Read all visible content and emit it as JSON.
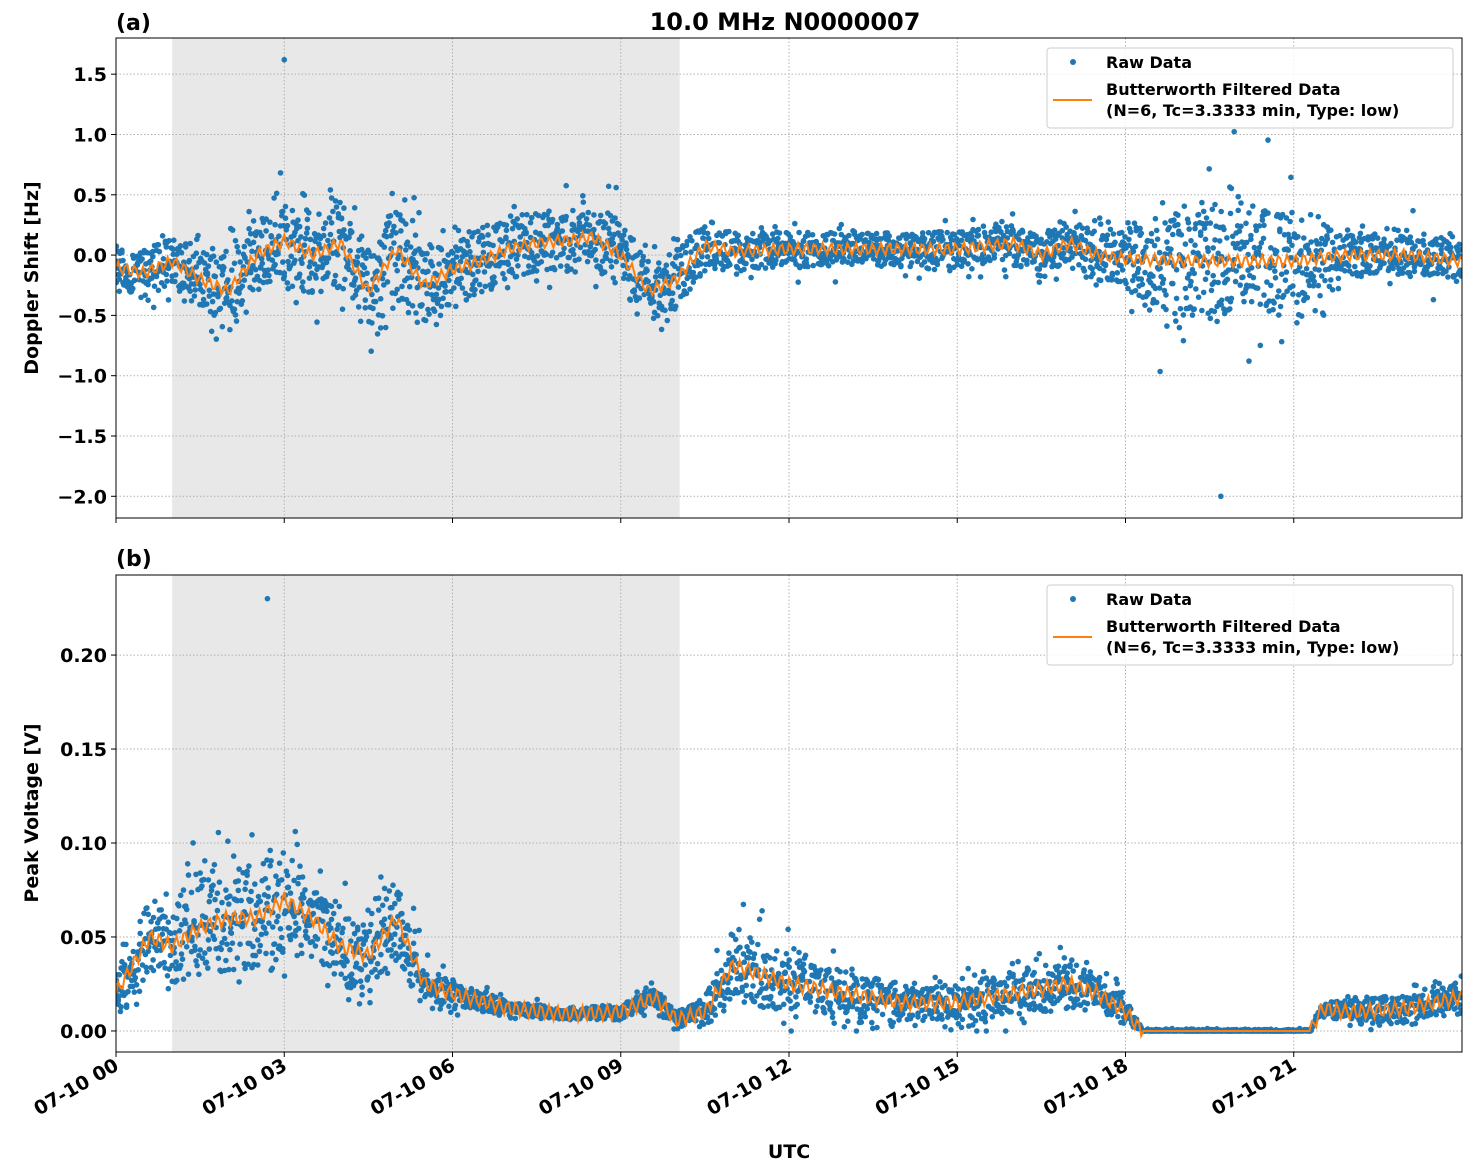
{
  "chart_data": {
    "title": "10.0 MHz N0000007",
    "xlabel": "UTC",
    "x_unit": "hours since 07-10 00:00 UTC",
    "xlim": [
      0,
      24
    ],
    "xticks": [
      0,
      3,
      6,
      9,
      12,
      15,
      18,
      21
    ],
    "xtick_labels": [
      "07-10 00",
      "07-10 03",
      "07-10 06",
      "07-10 09",
      "07-10 12",
      "07-10 15",
      "07-10 18",
      "07-10 21"
    ],
    "shaded_span_hours": [
      1.0,
      10.05
    ],
    "grid": true,
    "colors": {
      "raw": "#1f77b4",
      "filtered": "#ff7f0e",
      "shade": "#e8e8e8"
    },
    "legend": {
      "placement": "top-right",
      "entries": [
        "Raw Data",
        "Butterworth Filtered Data",
        "(N=6, Tc=3.3333 min, Type: low)"
      ]
    },
    "panels": [
      {
        "label": "(a)",
        "type": "scatter+line",
        "ylabel": "Doppler Shift [Hz]",
        "ylim": [
          -2.18,
          1.8
        ],
        "yticks": [
          1.5,
          1.0,
          0.5,
          0.0,
          -0.5,
          -1.0,
          -1.5,
          -2.0
        ],
        "ytick_labels": [
          "1.5",
          "1.0",
          "0.5",
          "0.0",
          "−0.5",
          "−1.0",
          "−1.5",
          "−2.0"
        ],
        "filtered": {
          "x": [
            0,
            0.5,
            1,
            1.5,
            2,
            2.5,
            3,
            3.5,
            4,
            4.5,
            5,
            5.5,
            6,
            6.5,
            7,
            7.5,
            8,
            8.5,
            9,
            9.5,
            10,
            10.5,
            11,
            12,
            13,
            14,
            15,
            16,
            16.5,
            17,
            17.5,
            18,
            19,
            20,
            21,
            21.5,
            22,
            23,
            24
          ],
          "y": [
            -0.1,
            -0.15,
            -0.05,
            -0.2,
            -0.3,
            0.0,
            0.12,
            0.0,
            0.1,
            -0.3,
            0.05,
            -0.25,
            -0.12,
            -0.05,
            0.05,
            0.1,
            0.12,
            0.15,
            0.0,
            -0.3,
            -0.2,
            0.08,
            0.03,
            0.05,
            0.05,
            0.05,
            0.05,
            0.1,
            0.0,
            0.1,
            0.0,
            -0.03,
            -0.05,
            -0.05,
            -0.05,
            -0.02,
            0.0,
            0.0,
            -0.05
          ]
        },
        "raw_spread": {
          "x": [
            0,
            1,
            2,
            3,
            4,
            5,
            6,
            7,
            8,
            9,
            10,
            11,
            12,
            13,
            14,
            15,
            16,
            17,
            18,
            19,
            20,
            21,
            22,
            23,
            24
          ],
          "y": [
            0.22,
            0.25,
            0.35,
            0.4,
            0.45,
            0.45,
            0.35,
            0.3,
            0.33,
            0.35,
            0.3,
            0.2,
            0.18,
            0.18,
            0.18,
            0.18,
            0.2,
            0.2,
            0.35,
            0.6,
            0.6,
            0.5,
            0.2,
            0.2,
            0.2
          ]
        },
        "raw_extremes": {
          "max": 1.62,
          "min": -2.0
        }
      },
      {
        "label": "(b)",
        "type": "scatter+line",
        "ylabel": "Peak Voltage [V]",
        "ylim": [
          -0.0112,
          0.2426
        ],
        "yticks": [
          0.2,
          0.15,
          0.1,
          0.05,
          0.0
        ],
        "ytick_labels": [
          "0.20",
          "0.15",
          "0.10",
          "0.05",
          "0.00"
        ],
        "filtered": {
          "x": [
            0,
            0.3,
            0.6,
            1,
            1.5,
            2,
            2.5,
            3,
            3.5,
            4,
            4.5,
            5,
            5.5,
            6,
            7,
            8,
            9,
            9.6,
            10,
            10.5,
            11,
            11.5,
            12,
            13,
            14,
            15,
            16,
            17,
            17.5,
            18,
            18.3,
            21.3,
            21.5,
            22,
            23,
            24
          ],
          "y": [
            0.02,
            0.035,
            0.05,
            0.045,
            0.055,
            0.06,
            0.06,
            0.07,
            0.06,
            0.045,
            0.04,
            0.06,
            0.025,
            0.02,
            0.012,
            0.009,
            0.01,
            0.018,
            0.006,
            0.01,
            0.035,
            0.03,
            0.025,
            0.02,
            0.015,
            0.015,
            0.02,
            0.025,
            0.02,
            0.01,
            0.0,
            0.0,
            0.012,
            0.01,
            0.012,
            0.018
          ]
        },
        "raw_spread": {
          "x": [
            0,
            1,
            2,
            3,
            4,
            5,
            5.5,
            6,
            7,
            8,
            9,
            10,
            10.5,
            11,
            12,
            13,
            14,
            15,
            16,
            17,
            18,
            18.3,
            21.3,
            22,
            23,
            24
          ],
          "y": [
            0.02,
            0.03,
            0.035,
            0.035,
            0.025,
            0.025,
            0.012,
            0.008,
            0.005,
            0.004,
            0.005,
            0.005,
            0.01,
            0.025,
            0.018,
            0.015,
            0.012,
            0.012,
            0.015,
            0.016,
            0.01,
            0.001,
            0.001,
            0.008,
            0.009,
            0.01
          ]
        },
        "raw_extremes": {
          "max": 0.23,
          "min": 0.0
        }
      }
    ]
  }
}
